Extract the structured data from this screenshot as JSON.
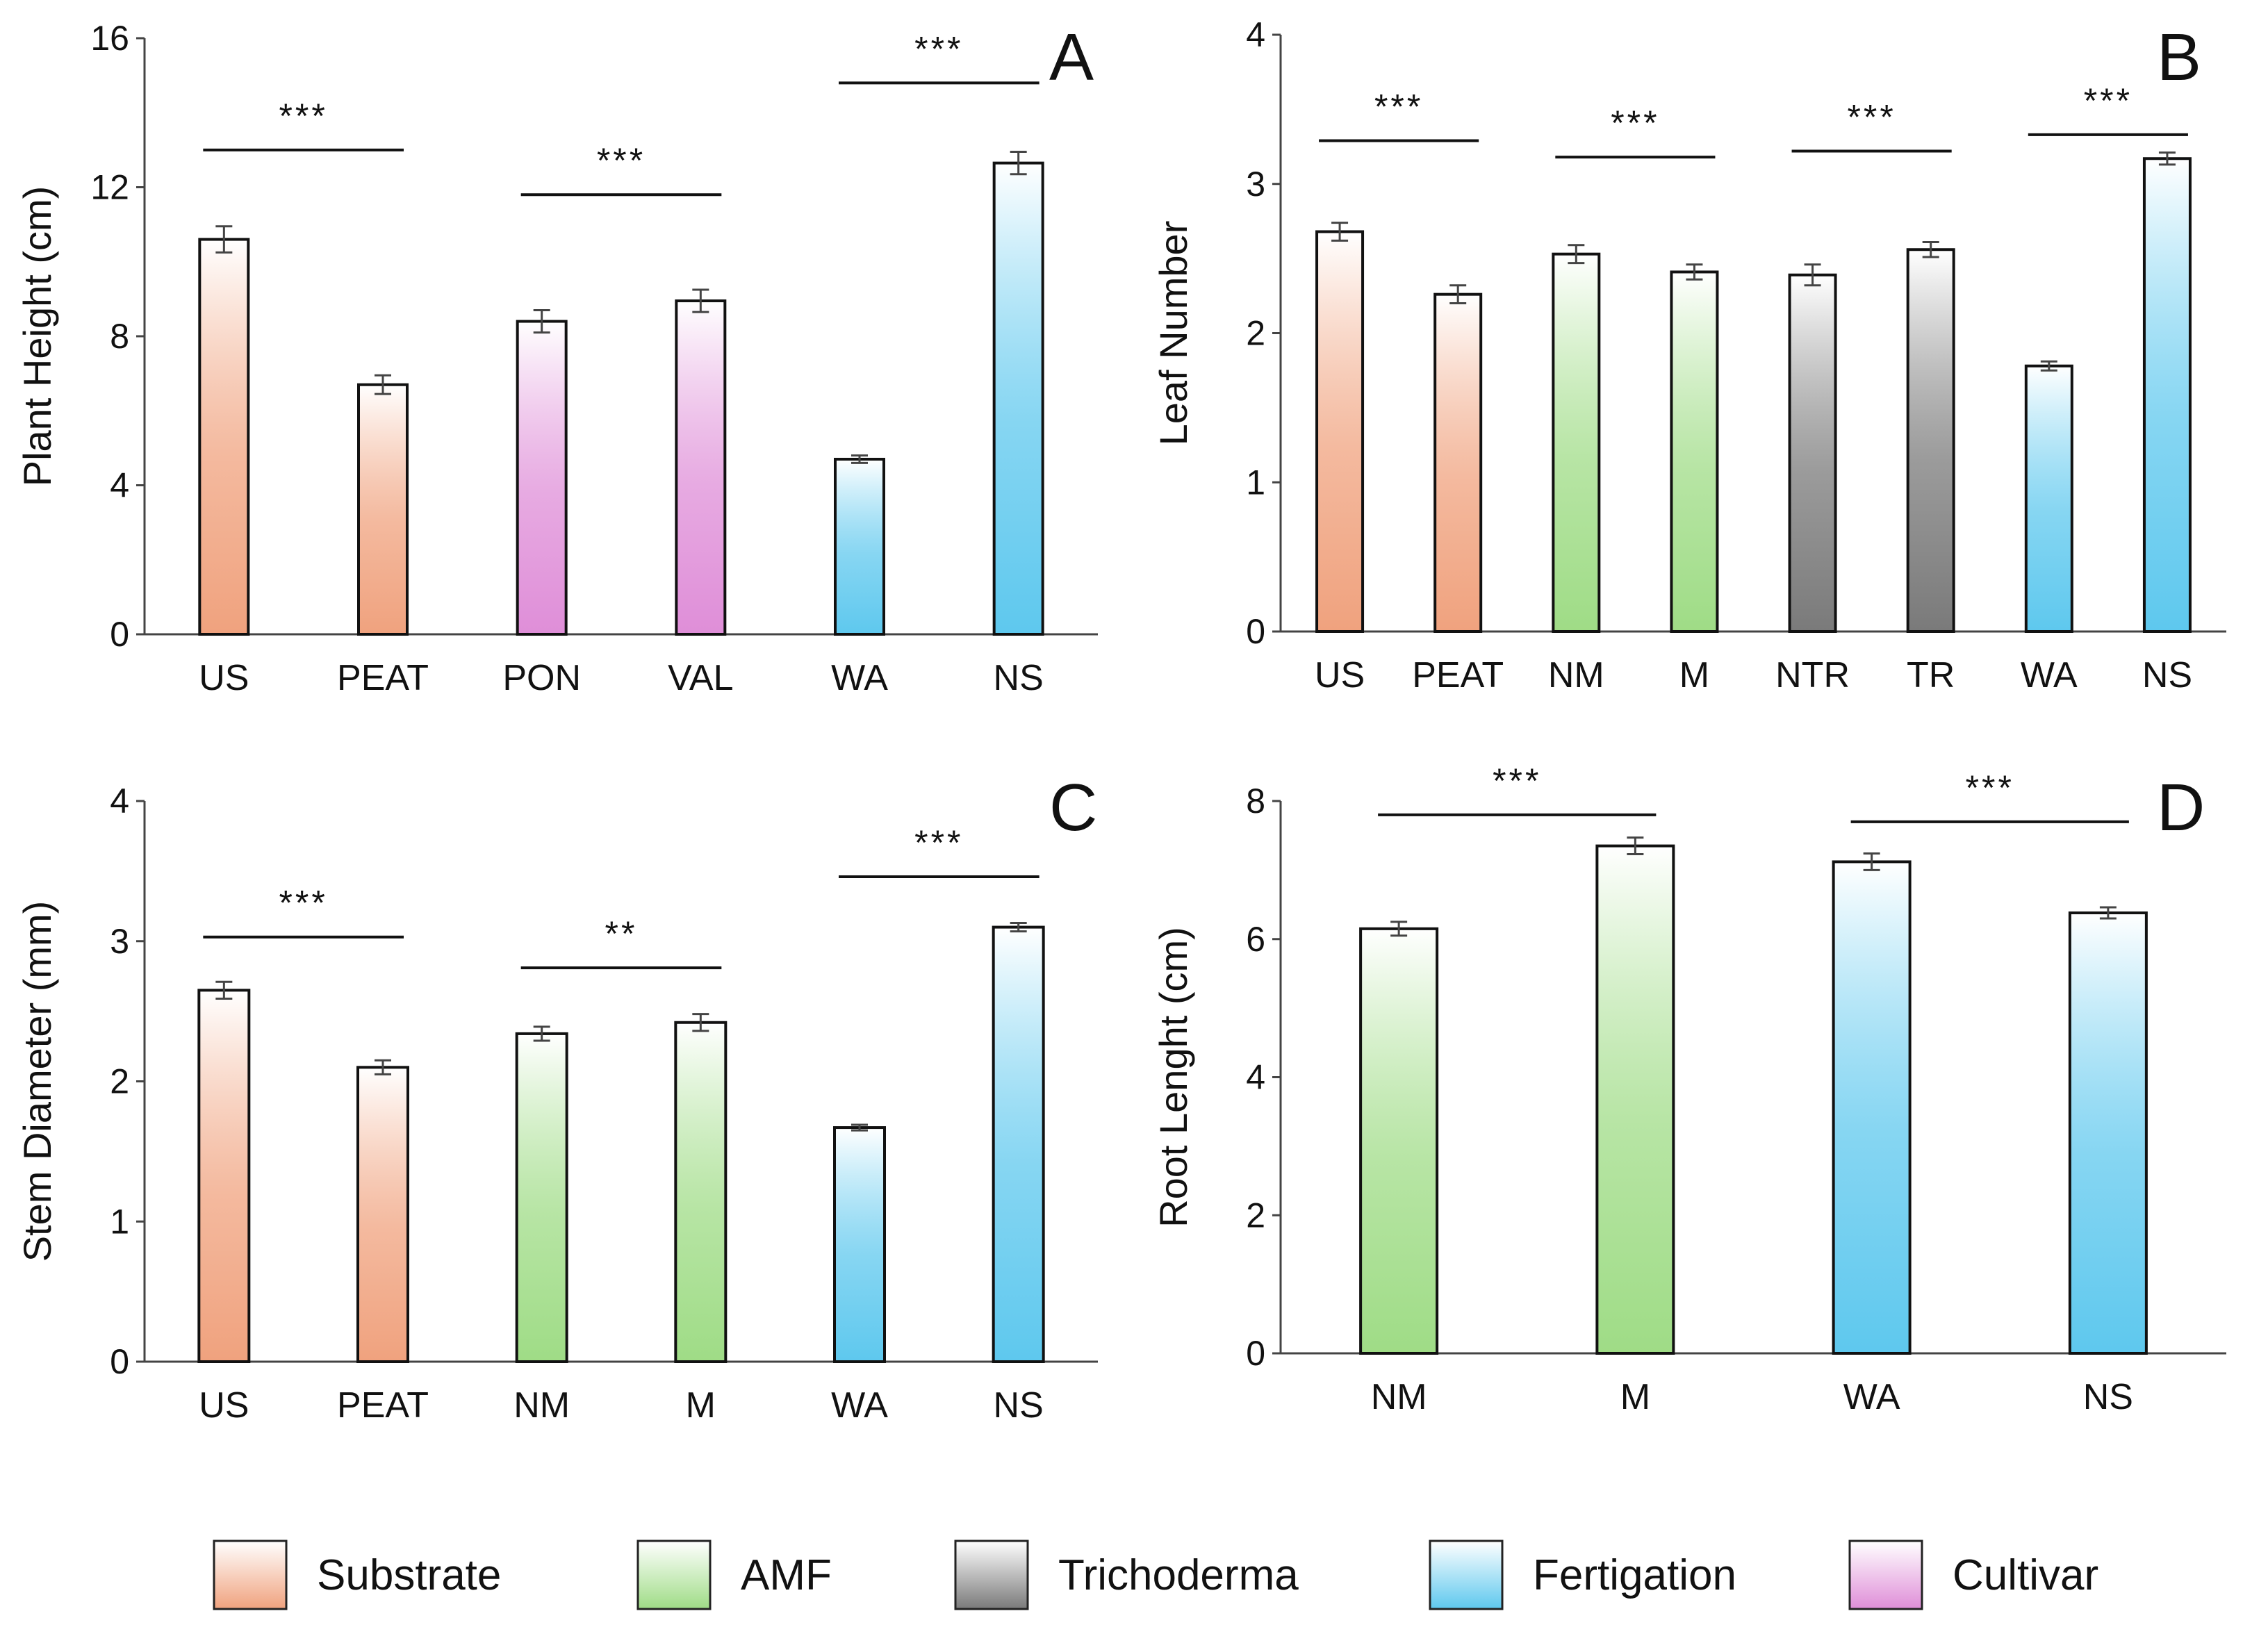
{
  "colors": {
    "Substrate": "#f0a27e",
    "AMF": "#9fdc86",
    "Trichoderma": "#7a7a7a",
    "Fertigation": "#5ec8ee",
    "Cultivar": "#df8ed8"
  },
  "legend": [
    {
      "label": "Substrate",
      "group": "Substrate"
    },
    {
      "label": "AMF",
      "group": "AMF"
    },
    {
      "label": "Trichoderma",
      "group": "Trichoderma"
    },
    {
      "label": "Fertigation",
      "group": "Fertigation"
    },
    {
      "label": "Cultivar",
      "group": "Cultivar"
    }
  ],
  "chart_data": [
    {
      "panel": "A",
      "type": "bar",
      "ylabel": "Plant Height (cm)",
      "ylim": [
        0,
        16
      ],
      "yticks": [
        0,
        4,
        8,
        12,
        16
      ],
      "categories": [
        "US",
        "PEAT",
        "PON",
        "VAL",
        "WA",
        "NS"
      ],
      "values": [
        10.6,
        6.7,
        8.4,
        8.95,
        4.7,
        12.65
      ],
      "errors": [
        0.35,
        0.25,
        0.3,
        0.3,
        0.1,
        0.3
      ],
      "groups": [
        "Substrate",
        "Substrate",
        "Cultivar",
        "Cultivar",
        "Fertigation",
        "Fertigation"
      ],
      "significance": [
        {
          "from": 0,
          "to": 1,
          "label": "***",
          "y": 13.0
        },
        {
          "from": 2,
          "to": 3,
          "label": "***",
          "y": 11.8
        },
        {
          "from": 4,
          "to": 5,
          "label": "***",
          "y": 14.8
        }
      ]
    },
    {
      "panel": "B",
      "type": "bar",
      "ylabel": "Leaf Number",
      "ylim": [
        0,
        4
      ],
      "yticks": [
        0,
        1,
        2,
        3,
        4
      ],
      "categories": [
        "US",
        "PEAT",
        "NM",
        "M",
        "NTR",
        "TR",
        "WA",
        "NS"
      ],
      "values": [
        2.68,
        2.26,
        2.53,
        2.41,
        2.39,
        2.56,
        1.78,
        3.17
      ],
      "errors": [
        0.06,
        0.06,
        0.06,
        0.05,
        0.07,
        0.05,
        0.03,
        0.04
      ],
      "groups": [
        "Substrate",
        "Substrate",
        "AMF",
        "AMF",
        "Trichoderma",
        "Trichoderma",
        "Fertigation",
        "Fertigation"
      ],
      "significance": [
        {
          "from": 0,
          "to": 1,
          "label": "***",
          "y": 3.29
        },
        {
          "from": 2,
          "to": 3,
          "label": "***",
          "y": 3.18
        },
        {
          "from": 4,
          "to": 5,
          "label": "***",
          "y": 3.22
        },
        {
          "from": 6,
          "to": 7,
          "label": "***",
          "y": 3.33
        }
      ]
    },
    {
      "panel": "C",
      "type": "bar",
      "ylabel": "Stem Diameter (mm)",
      "ylim": [
        0,
        4
      ],
      "yticks": [
        0,
        1,
        2,
        3,
        4
      ],
      "categories": [
        "US",
        "PEAT",
        "NM",
        "M",
        "WA",
        "NS"
      ],
      "values": [
        2.65,
        2.1,
        2.34,
        2.42,
        1.67,
        3.1
      ],
      "errors": [
        0.06,
        0.05,
        0.05,
        0.06,
        0.02,
        0.03
      ],
      "groups": [
        "Substrate",
        "Substrate",
        "AMF",
        "AMF",
        "Fertigation",
        "Fertigation"
      ],
      "significance": [
        {
          "from": 0,
          "to": 1,
          "label": "***",
          "y": 3.03
        },
        {
          "from": 2,
          "to": 3,
          "label": "**",
          "y": 2.81
        },
        {
          "from": 4,
          "to": 5,
          "label": "***",
          "y": 3.46
        }
      ]
    },
    {
      "panel": "D",
      "type": "bar",
      "ylabel": "Root Lenght (cm)",
      "ylim": [
        0,
        8
      ],
      "yticks": [
        0,
        2,
        4,
        6,
        8
      ],
      "categories": [
        "NM",
        "M",
        "WA",
        "NS"
      ],
      "values": [
        6.15,
        7.35,
        7.12,
        6.38
      ],
      "errors": [
        0.1,
        0.12,
        0.12,
        0.08
      ],
      "groups": [
        "AMF",
        "AMF",
        "Fertigation",
        "Fertigation"
      ],
      "significance": [
        {
          "from": 0,
          "to": 1,
          "label": "***",
          "y": 7.8
        },
        {
          "from": 2,
          "to": 3,
          "label": "***",
          "y": 7.7
        }
      ]
    }
  ]
}
